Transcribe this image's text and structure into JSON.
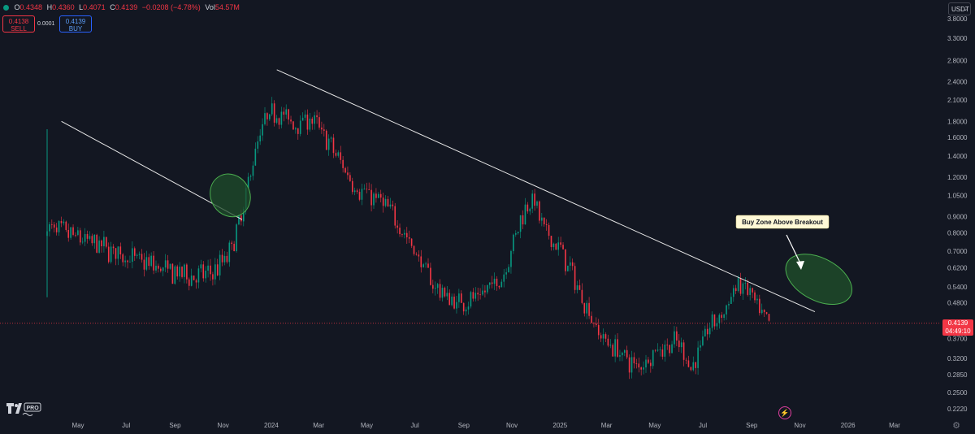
{
  "header": {
    "o_label": "O",
    "o_value": "0.4348",
    "h_label": "H",
    "h_value": "0.4360",
    "l_label": "L",
    "l_value": "0.4071",
    "c_label": "C",
    "c_value": "0.4139",
    "change": "−0.0208 (−4.78%)",
    "vol_label": "Vol",
    "vol_value": "54.57M"
  },
  "trade": {
    "sell_price": "0.4138",
    "sell_label": "SELL",
    "spread": "0.0001",
    "buy_price": "0.4139",
    "buy_label": "BUY"
  },
  "currency": "USDT",
  "price_tag": {
    "price": "0.4139",
    "countdown": "04:49:10"
  },
  "annotation": "Buy Zone Above Breakout",
  "colors": {
    "background": "#131722",
    "up": "#089981",
    "down": "#f23645",
    "zone": "#1f4d2b"
  },
  "icons": [
    "tradingview-logo",
    "gear-icon",
    "flash-icon",
    "chevron-down-icon"
  ],
  "chart_data": {
    "type": "candlestick",
    "y_scale": "log",
    "y_ticks": [
      "3.8000",
      "3.3000",
      "2.8000",
      "2.4000",
      "2.1000",
      "1.8000",
      "1.6000",
      "1.4000",
      "1.2000",
      "1.0500",
      "0.9000",
      "0.8000",
      "0.7000",
      "0.6200",
      "0.5400",
      "0.4800",
      "0.3700",
      "0.3200",
      "0.2850",
      "0.2500",
      "0.2220"
    ],
    "x_ticks": [
      "May",
      "Jul",
      "Sep",
      "Nov",
      "2024",
      "Mar",
      "May",
      "Jul",
      "Sep",
      "Nov",
      "2025",
      "Mar",
      "May",
      "Jul",
      "Sep",
      "Nov",
      "2026",
      "Mar"
    ],
    "trend": [
      [
        "2023-04-04",
        0.83
      ],
      [
        "2023-05-08",
        0.78
      ],
      [
        "2023-06-08",
        0.73
      ],
      [
        "2023-07-08",
        0.68
      ],
      [
        "2023-08-08",
        0.64
      ],
      [
        "2023-09-08",
        0.6
      ],
      [
        "2023-10-08",
        0.58
      ],
      [
        "2023-11-01",
        0.6
      ],
      [
        "2023-11-20",
        0.68
      ],
      [
        "2023-12-08",
        0.92
      ],
      [
        "2023-12-20",
        1.35
      ],
      [
        "2024-01-05",
        1.8
      ],
      [
        "2024-01-20",
        1.95
      ],
      [
        "2024-02-10",
        1.75
      ],
      [
        "2024-03-01",
        1.85
      ],
      [
        "2024-03-15",
        1.7
      ],
      [
        "2024-04-01",
        1.45
      ],
      [
        "2024-05-01",
        1.1
      ],
      [
        "2024-06-01",
        1.0
      ],
      [
        "2024-06-20",
        0.88
      ],
      [
        "2024-07-10",
        0.72
      ],
      [
        "2024-08-05",
        0.55
      ],
      [
        "2024-09-01",
        0.48
      ],
      [
        "2024-10-01",
        0.5
      ],
      [
        "2024-11-01",
        0.58
      ],
      [
        "2024-11-25",
        0.9
      ],
      [
        "2024-12-08",
        1.05
      ],
      [
        "2024-12-25",
        0.8
      ],
      [
        "2025-01-15",
        0.7
      ],
      [
        "2025-02-10",
        0.5
      ],
      [
        "2025-03-05",
        0.38
      ],
      [
        "2025-04-01",
        0.33
      ],
      [
        "2025-04-20",
        0.3
      ],
      [
        "2025-05-15",
        0.34
      ],
      [
        "2025-06-10",
        0.36
      ],
      [
        "2025-06-30",
        0.3
      ],
      [
        "2025-07-20",
        0.4
      ],
      [
        "2025-08-10",
        0.45
      ],
      [
        "2025-08-25",
        0.55
      ],
      [
        "2025-09-10",
        0.52
      ],
      [
        "2025-09-25",
        0.43
      ],
      [
        "2025-10-06",
        0.414
      ]
    ],
    "trendlines": [
      {
        "from": [
          "2023-04-10",
          1.8
        ],
        "to": [
          "2023-11-25",
          0.88
        ]
      },
      {
        "from": [
          "2024-01-08",
          2.62
        ],
        "to": [
          "2025-11-20",
          0.45
        ]
      }
    ],
    "zones": [
      {
        "center": [
          "2023-11-10",
          1.05
        ],
        "type": "ellipse"
      },
      {
        "center": [
          "2025-11-25",
          0.57
        ],
        "type": "ellipse"
      }
    ],
    "last_price": 0.4139
  }
}
